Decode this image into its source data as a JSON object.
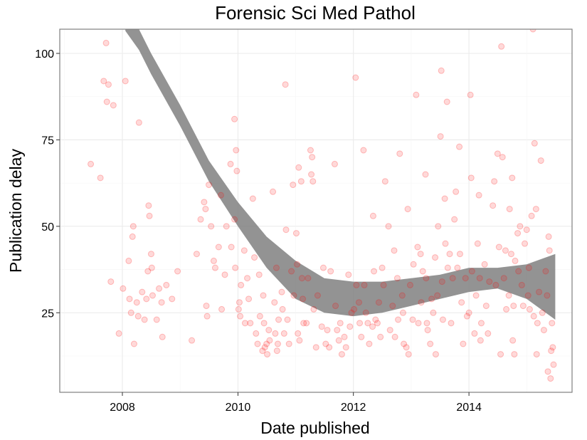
{
  "chart_data": {
    "type": "scatter",
    "title": "Forensic Sci Med Pathol",
    "xlabel": "Date published",
    "ylabel": "Publication delay",
    "x_axis": {
      "type": "date",
      "min": "2006-12-01",
      "max": "2015-10-15",
      "ticks": [
        {
          "value": "2008-01-01",
          "label": "2008"
        },
        {
          "value": "2010-01-01",
          "label": "2010"
        },
        {
          "value": "2012-01-01",
          "label": "2012"
        },
        {
          "value": "2014-01-01",
          "label": "2014"
        }
      ]
    },
    "y_axis": {
      "min": 2,
      "max": 107,
      "ticks": [
        {
          "value": 25,
          "label": "25"
        },
        {
          "value": 50,
          "label": "50"
        },
        {
          "value": 75,
          "label": "75"
        },
        {
          "value": 100,
          "label": "100"
        }
      ]
    },
    "grid": true,
    "point_color": "#ff0000",
    "point_alpha": 0.15,
    "band_color": "#808080",
    "points": [
      [
        "2007-06-15",
        68
      ],
      [
        "2007-08-15",
        64
      ],
      [
        "2007-09-05",
        92
      ],
      [
        "2007-09-20",
        103
      ],
      [
        "2007-09-25",
        86
      ],
      [
        "2007-10-05",
        91
      ],
      [
        "2007-10-20",
        34
      ],
      [
        "2007-11-05",
        85
      ],
      [
        "2007-12-10",
        19
      ],
      [
        "2008-01-05",
        32
      ],
      [
        "2008-01-20",
        92
      ],
      [
        "2008-02-10",
        40
      ],
      [
        "2008-02-15",
        29
      ],
      [
        "2008-02-25",
        25
      ],
      [
        "2008-03-05",
        47
      ],
      [
        "2008-03-10",
        50
      ],
      [
        "2008-03-15",
        16
      ],
      [
        "2008-04-01",
        28
      ],
      [
        "2008-04-10",
        24
      ],
      [
        "2008-04-15",
        80
      ],
      [
        "2008-05-05",
        31
      ],
      [
        "2008-05-20",
        23
      ],
      [
        "2008-06-01",
        29
      ],
      [
        "2008-06-10",
        37
      ],
      [
        "2008-06-15",
        56
      ],
      [
        "2008-06-20",
        53
      ],
      [
        "2008-07-01",
        42
      ],
      [
        "2008-07-05",
        38
      ],
      [
        "2008-07-10",
        30
      ],
      [
        "2008-08-05",
        23
      ],
      [
        "2008-08-20",
        32
      ],
      [
        "2008-09-05",
        28
      ],
      [
        "2008-09-10",
        18
      ],
      [
        "2008-10-05",
        33
      ],
      [
        "2008-11-10",
        29
      ],
      [
        "2008-12-15",
        37
      ],
      [
        "2009-03-15",
        17
      ],
      [
        "2009-04-15",
        42
      ],
      [
        "2009-05-10",
        52
      ],
      [
        "2009-06-01",
        57
      ],
      [
        "2009-06-10",
        55
      ],
      [
        "2009-06-15",
        27
      ],
      [
        "2009-06-20",
        24
      ],
      [
        "2009-07-01",
        62
      ],
      [
        "2009-07-15",
        50
      ],
      [
        "2009-08-01",
        40
      ],
      [
        "2009-08-10",
        38
      ],
      [
        "2009-09-01",
        44
      ],
      [
        "2009-09-15",
        59
      ],
      [
        "2009-09-20",
        26
      ],
      [
        "2009-10-10",
        36
      ],
      [
        "2009-10-20",
        50
      ],
      [
        "2009-11-15",
        68
      ],
      [
        "2009-11-20",
        44
      ],
      [
        "2009-12-10",
        81
      ],
      [
        "2009-12-10",
        52
      ],
      [
        "2009-12-15",
        38
      ],
      [
        "2009-12-20",
        72
      ],
      [
        "2009-12-25",
        66
      ],
      [
        "2010-01-05",
        26
      ],
      [
        "2010-01-10",
        28
      ],
      [
        "2010-01-15",
        24
      ],
      [
        "2010-01-20",
        33
      ],
      [
        "2010-02-10",
        43
      ],
      [
        "2010-02-15",
        22
      ],
      [
        "2010-03-01",
        35
      ],
      [
        "2010-03-10",
        29
      ],
      [
        "2010-03-20",
        22
      ],
      [
        "2010-04-05",
        58
      ],
      [
        "2010-04-15",
        41
      ],
      [
        "2010-04-25",
        19
      ],
      [
        "2010-05-05",
        16
      ],
      [
        "2010-05-15",
        36
      ],
      [
        "2010-05-20",
        24
      ],
      [
        "2010-06-05",
        14
      ],
      [
        "2010-06-10",
        30
      ],
      [
        "2010-06-15",
        22
      ],
      [
        "2010-06-20",
        15
      ],
      [
        "2010-07-01",
        16
      ],
      [
        "2010-07-05",
        13
      ],
      [
        "2010-07-15",
        20
      ],
      [
        "2010-07-20",
        17
      ],
      [
        "2010-08-10",
        60
      ],
      [
        "2010-08-20",
        28
      ],
      [
        "2010-08-25",
        19
      ],
      [
        "2010-09-01",
        38
      ],
      [
        "2010-09-05",
        14
      ],
      [
        "2010-09-10",
        16
      ],
      [
        "2010-09-15",
        23
      ],
      [
        "2010-10-05",
        31
      ],
      [
        "2010-10-10",
        26
      ],
      [
        "2010-10-20",
        19
      ],
      [
        "2010-10-28",
        91
      ],
      [
        "2010-11-01",
        49
      ],
      [
        "2010-11-10",
        23
      ],
      [
        "2010-11-20",
        16
      ],
      [
        "2010-12-05",
        37
      ],
      [
        "2010-12-15",
        62
      ],
      [
        "2010-12-20",
        30
      ],
      [
        "2011-01-05",
        48
      ],
      [
        "2011-01-10",
        39
      ],
      [
        "2011-01-15",
        19
      ],
      [
        "2011-01-20",
        67
      ],
      [
        "2011-01-25",
        17
      ],
      [
        "2011-02-05",
        63
      ],
      [
        "2011-02-10",
        35
      ],
      [
        "2011-02-15",
        29
      ],
      [
        "2011-02-20",
        22
      ],
      [
        "2011-03-10",
        22
      ],
      [
        "2011-03-20",
        35
      ],
      [
        "2011-04-05",
        72
      ],
      [
        "2011-04-10",
        65
      ],
      [
        "2011-04-15",
        70
      ],
      [
        "2011-04-20",
        63
      ],
      [
        "2011-04-25",
        26
      ],
      [
        "2011-05-10",
        15
      ],
      [
        "2011-05-20",
        30
      ],
      [
        "2011-06-15",
        21
      ],
      [
        "2011-06-25",
        38
      ],
      [
        "2011-07-10",
        16
      ],
      [
        "2011-07-20",
        20
      ],
      [
        "2011-08-01",
        15
      ],
      [
        "2011-08-10",
        37
      ],
      [
        "2011-09-05",
        68
      ],
      [
        "2011-09-10",
        27
      ],
      [
        "2011-09-20",
        20
      ],
      [
        "2011-10-01",
        17
      ],
      [
        "2011-10-10",
        22
      ],
      [
        "2011-10-20",
        13
      ],
      [
        "2011-11-05",
        18
      ],
      [
        "2011-11-15",
        15
      ],
      [
        "2011-12-01",
        36
      ],
      [
        "2011-12-10",
        21
      ],
      [
        "2011-12-20",
        25
      ],
      [
        "2012-01-05",
        26
      ],
      [
        "2012-01-15",
        93
      ],
      [
        "2012-01-20",
        33
      ],
      [
        "2012-02-05",
        28
      ],
      [
        "2012-02-10",
        22
      ],
      [
        "2012-02-20",
        18
      ],
      [
        "2012-03-05",
        72
      ],
      [
        "2012-03-10",
        33
      ],
      [
        "2012-03-20",
        25
      ],
      [
        "2012-04-01",
        22
      ],
      [
        "2012-04-10",
        16
      ],
      [
        "2012-05-01",
        21
      ],
      [
        "2012-05-05",
        53
      ],
      [
        "2012-05-10",
        37
      ],
      [
        "2012-05-20",
        23
      ],
      [
        "2012-06-01",
        22
      ],
      [
        "2012-06-10",
        28
      ],
      [
        "2012-06-20",
        18
      ],
      [
        "2012-07-01",
        38
      ],
      [
        "2012-07-10",
        33
      ],
      [
        "2012-07-20",
        63
      ],
      [
        "2012-08-10",
        50
      ],
      [
        "2012-08-20",
        20
      ],
      [
        "2012-09-05",
        27
      ],
      [
        "2012-09-15",
        43
      ],
      [
        "2012-09-20",
        18
      ],
      [
        "2012-10-05",
        35
      ],
      [
        "2012-10-10",
        23
      ],
      [
        "2012-10-20",
        71
      ],
      [
        "2012-11-05",
        30
      ],
      [
        "2012-11-10",
        25
      ],
      [
        "2012-11-15",
        16
      ],
      [
        "2012-12-01",
        15
      ],
      [
        "2012-12-10",
        55
      ],
      [
        "2012-12-15",
        13
      ],
      [
        "2012-12-25",
        33
      ],
      [
        "2013-01-10",
        23
      ],
      [
        "2013-01-15",
        39
      ],
      [
        "2013-02-01",
        88
      ],
      [
        "2013-02-10",
        44
      ],
      [
        "2013-02-15",
        22
      ],
      [
        "2013-03-01",
        42
      ],
      [
        "2013-03-05",
        28
      ],
      [
        "2013-03-15",
        37
      ],
      [
        "2013-04-01",
        65
      ],
      [
        "2013-04-05",
        35
      ],
      [
        "2013-04-10",
        22
      ],
      [
        "2013-04-15",
        20
      ],
      [
        "2013-05-01",
        16
      ],
      [
        "2013-05-10",
        29
      ],
      [
        "2013-05-20",
        25
      ],
      [
        "2013-06-01",
        41
      ],
      [
        "2013-06-05",
        13
      ],
      [
        "2013-06-15",
        30
      ],
      [
        "2013-06-20",
        50
      ],
      [
        "2013-07-05",
        76
      ],
      [
        "2013-07-10",
        95
      ],
      [
        "2013-07-15",
        34
      ],
      [
        "2013-07-20",
        23
      ],
      [
        "2013-08-01",
        58
      ],
      [
        "2013-08-05",
        45
      ],
      [
        "2013-08-15",
        86
      ],
      [
        "2013-08-20",
        38
      ],
      [
        "2013-09-01",
        42
      ],
      [
        "2013-09-10",
        22
      ],
      [
        "2013-09-20",
        35
      ],
      [
        "2013-10-01",
        52
      ],
      [
        "2013-10-10",
        60
      ],
      [
        "2013-10-20",
        38
      ],
      [
        "2013-11-01",
        73
      ],
      [
        "2013-11-05",
        42
      ],
      [
        "2013-11-15",
        28
      ],
      [
        "2013-11-25",
        16
      ],
      [
        "2013-12-10",
        35
      ],
      [
        "2013-12-20",
        24
      ],
      [
        "2014-01-01",
        25
      ],
      [
        "2014-01-10",
        88
      ],
      [
        "2014-01-15",
        64
      ],
      [
        "2014-01-20",
        37
      ],
      [
        "2014-02-05",
        19
      ],
      [
        "2014-02-15",
        30
      ],
      [
        "2014-02-25",
        45
      ],
      [
        "2014-03-05",
        59
      ],
      [
        "2014-03-10",
        35
      ],
      [
        "2014-03-15",
        17
      ],
      [
        "2014-03-20",
        22
      ],
      [
        "2014-04-10",
        39
      ],
      [
        "2014-04-20",
        27
      ],
      [
        "2014-05-01",
        19
      ],
      [
        "2014-05-10",
        34
      ],
      [
        "2014-06-01",
        56
      ],
      [
        "2014-06-10",
        63
      ],
      [
        "2014-06-20",
        33
      ],
      [
        "2014-07-01",
        71
      ],
      [
        "2014-07-10",
        44
      ],
      [
        "2014-07-20",
        13
      ],
      [
        "2014-07-25",
        102
      ],
      [
        "2014-08-01",
        70
      ],
      [
        "2014-08-10",
        35
      ],
      [
        "2014-08-20",
        43
      ],
      [
        "2014-08-25",
        26
      ],
      [
        "2014-09-10",
        30
      ],
      [
        "2014-09-15",
        55
      ],
      [
        "2014-09-25",
        42
      ],
      [
        "2014-10-01",
        64
      ],
      [
        "2014-10-05",
        17
      ],
      [
        "2014-10-10",
        27
      ],
      [
        "2014-10-15",
        13
      ],
      [
        "2014-10-20",
        40
      ],
      [
        "2014-11-05",
        48
      ],
      [
        "2014-11-10",
        37
      ],
      [
        "2014-11-20",
        50
      ],
      [
        "2014-12-01",
        33
      ],
      [
        "2014-12-10",
        27
      ],
      [
        "2014-12-20",
        45
      ],
      [
        "2015-01-01",
        49
      ],
      [
        "2015-01-10",
        30
      ],
      [
        "2015-01-15",
        38
      ],
      [
        "2015-01-20",
        26
      ],
      [
        "2015-02-01",
        53
      ],
      [
        "2015-02-10",
        107
      ],
      [
        "2015-02-15",
        24
      ],
      [
        "2015-02-20",
        74
      ],
      [
        "2015-03-01",
        55
      ],
      [
        "2015-03-05",
        13
      ],
      [
        "2015-03-10",
        22
      ],
      [
        "2015-03-20",
        31
      ],
      [
        "2015-04-01",
        69
      ],
      [
        "2015-04-10",
        25
      ],
      [
        "2015-04-20",
        20
      ],
      [
        "2015-05-01",
        37
      ],
      [
        "2015-05-10",
        30
      ],
      [
        "2015-05-15",
        8
      ],
      [
        "2015-05-20",
        47
      ],
      [
        "2015-05-25",
        43
      ],
      [
        "2015-06-01",
        6
      ],
      [
        "2015-06-05",
        14
      ],
      [
        "2015-06-10",
        22
      ],
      [
        "2015-06-15",
        15
      ],
      [
        "2015-06-20",
        10
      ]
    ],
    "band": [
      {
        "x": "2008-01-20",
        "lo": 106.5,
        "hi": 108
      },
      {
        "x": "2008-04-15",
        "lo": 101,
        "hi": 107
      },
      {
        "x": "2008-07-01",
        "lo": 94,
        "hi": 100
      },
      {
        "x": "2009-01-01",
        "lo": 79,
        "hi": 85
      },
      {
        "x": "2009-07-01",
        "lo": 63,
        "hi": 69
      },
      {
        "x": "2010-01-01",
        "lo": 50,
        "hi": 57
      },
      {
        "x": "2010-07-01",
        "lo": 38,
        "hi": 47
      },
      {
        "x": "2011-01-01",
        "lo": 29,
        "hi": 40
      },
      {
        "x": "2011-07-01",
        "lo": 25,
        "hi": 35
      },
      {
        "x": "2012-01-01",
        "lo": 24,
        "hi": 34
      },
      {
        "x": "2012-07-01",
        "lo": 25,
        "hi": 34
      },
      {
        "x": "2013-01-01",
        "lo": 27,
        "hi": 35
      },
      {
        "x": "2013-07-01",
        "lo": 29,
        "hi": 36
      },
      {
        "x": "2014-01-01",
        "lo": 31,
        "hi": 38
      },
      {
        "x": "2014-07-01",
        "lo": 32,
        "hi": 38
      },
      {
        "x": "2015-01-01",
        "lo": 29,
        "hi": 39
      },
      {
        "x": "2015-07-01",
        "lo": 23,
        "hi": 42
      }
    ]
  }
}
